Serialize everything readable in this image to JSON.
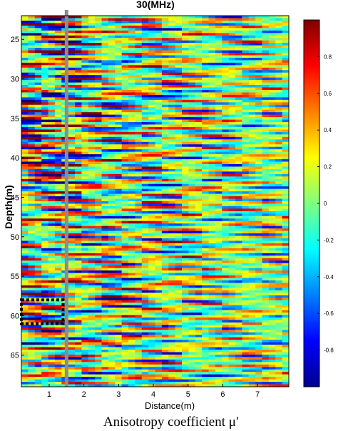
{
  "chart_data": {
    "type": "heatmap",
    "title": "30(MHz)",
    "xlabel": "Distance(m)",
    "ylabel": "Depth(m)",
    "caption": "Anisotropy coefficient μ′",
    "xlim": [
      0.2,
      7.9
    ],
    "ylim": [
      22,
      69
    ],
    "y_reversed": true,
    "x_ticks": [
      "1",
      "2",
      "3",
      "4",
      "5",
      "6",
      "7"
    ],
    "y_ticks": [
      "25",
      "30",
      "35",
      "40",
      "45",
      "50",
      "55",
      "60",
      "65"
    ],
    "colorbar": {
      "range": [
        -1,
        1
      ],
      "colormap": "jet",
      "ticks": [
        "0.8",
        "0.6",
        "0.4",
        "0.2",
        "0",
        "-0.2",
        "-0.4",
        "-0.6",
        "-0.8"
      ]
    },
    "marker_line": {
      "x": 1.5,
      "color": "#8c8c8c"
    },
    "highlight_box": {
      "x_range": [
        0.2,
        1.4
      ],
      "y_range": [
        58,
        61
      ],
      "style": "dotted"
    },
    "field_description": "Noisy field of mostly near-zero values (cyan/green), elongated horizontal streaks of positive (yellow to red) and negative (blue) values, strongest at shallow depths near distance 1 m; mean value about 0.05"
  }
}
